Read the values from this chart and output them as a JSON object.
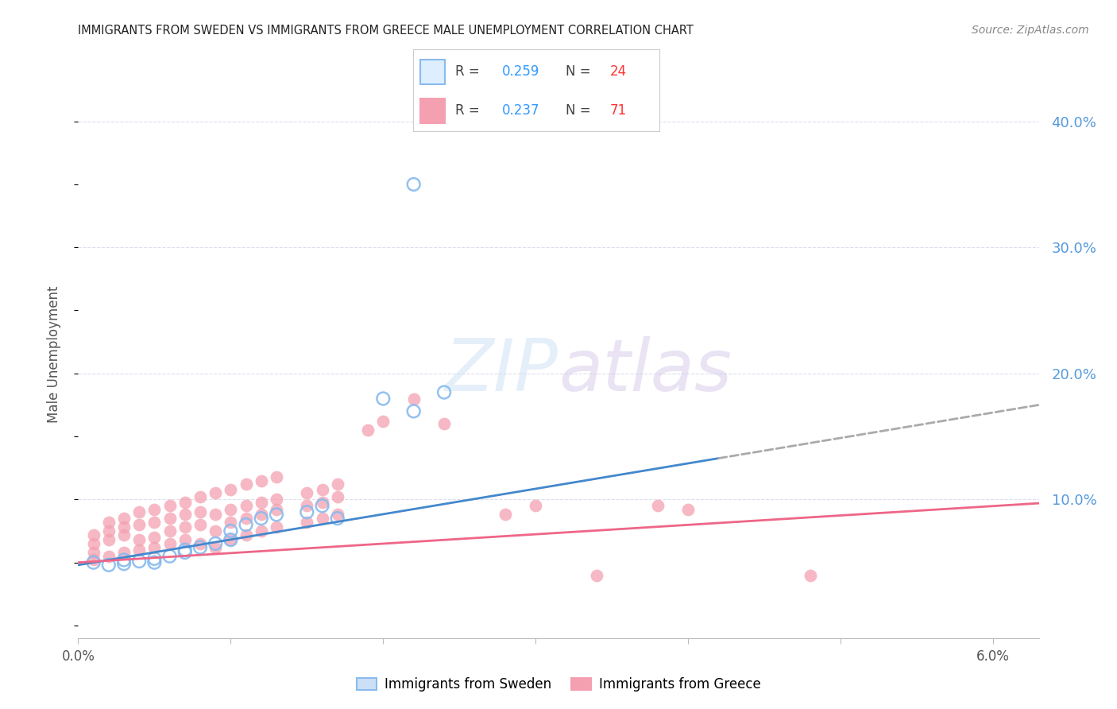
{
  "title": "IMMIGRANTS FROM SWEDEN VS IMMIGRANTS FROM GREECE MALE UNEMPLOYMENT CORRELATION CHART",
  "source": "Source: ZipAtlas.com",
  "ylabel": "Male Unemployment",
  "xlim": [
    0.0,
    0.063
  ],
  "ylim": [
    -0.01,
    0.44
  ],
  "right_yticks": [
    0.1,
    0.2,
    0.3,
    0.4
  ],
  "right_yticklabels": [
    "10.0%",
    "20.0%",
    "30.0%",
    "40.0%"
  ],
  "gridline_y": [
    0.1,
    0.2,
    0.3,
    0.4
  ],
  "background_color": "#ffffff",
  "grid_color": "#ddddee",
  "sweden_color": "#88bbee",
  "greece_color": "#f4a0b0",
  "trend_sweden_solid_color": "#4488cc",
  "trend_sweden_dash_color": "#aaaaaa",
  "trend_greece_color": "#ee6688",
  "legend_R_color_sweden": "#3399ff",
  "legend_N_color_sweden": "#ff4444",
  "legend_R_color_greece": "#3399ff",
  "legend_N_color_greece": "#ff4444",
  "sweden_scatter": [
    [
      0.001,
      0.05
    ],
    [
      0.002,
      0.048
    ],
    [
      0.003,
      0.052
    ],
    [
      0.003,
      0.049
    ],
    [
      0.004,
      0.051
    ],
    [
      0.005,
      0.05
    ],
    [
      0.005,
      0.053
    ],
    [
      0.006,
      0.055
    ],
    [
      0.007,
      0.058
    ],
    [
      0.007,
      0.06
    ],
    [
      0.008,
      0.062
    ],
    [
      0.009,
      0.065
    ],
    [
      0.01,
      0.068
    ],
    [
      0.01,
      0.075
    ],
    [
      0.011,
      0.08
    ],
    [
      0.012,
      0.085
    ],
    [
      0.013,
      0.088
    ],
    [
      0.015,
      0.09
    ],
    [
      0.016,
      0.095
    ],
    [
      0.017,
      0.085
    ],
    [
      0.02,
      0.18
    ],
    [
      0.022,
      0.17
    ],
    [
      0.024,
      0.185
    ],
    [
      0.022,
      0.35
    ]
  ],
  "greece_scatter": [
    [
      0.001,
      0.052
    ],
    [
      0.001,
      0.058
    ],
    [
      0.001,
      0.065
    ],
    [
      0.001,
      0.072
    ],
    [
      0.002,
      0.055
    ],
    [
      0.002,
      0.068
    ],
    [
      0.002,
      0.075
    ],
    [
      0.002,
      0.082
    ],
    [
      0.003,
      0.058
    ],
    [
      0.003,
      0.072
    ],
    [
      0.003,
      0.078
    ],
    [
      0.003,
      0.085
    ],
    [
      0.004,
      0.06
    ],
    [
      0.004,
      0.068
    ],
    [
      0.004,
      0.08
    ],
    [
      0.004,
      0.09
    ],
    [
      0.005,
      0.062
    ],
    [
      0.005,
      0.07
    ],
    [
      0.005,
      0.082
    ],
    [
      0.005,
      0.092
    ],
    [
      0.006,
      0.065
    ],
    [
      0.006,
      0.075
    ],
    [
      0.006,
      0.085
    ],
    [
      0.006,
      0.095
    ],
    [
      0.007,
      0.068
    ],
    [
      0.007,
      0.078
    ],
    [
      0.007,
      0.088
    ],
    [
      0.007,
      0.098
    ],
    [
      0.008,
      0.065
    ],
    [
      0.008,
      0.08
    ],
    [
      0.008,
      0.09
    ],
    [
      0.008,
      0.102
    ],
    [
      0.009,
      0.062
    ],
    [
      0.009,
      0.075
    ],
    [
      0.009,
      0.088
    ],
    [
      0.009,
      0.105
    ],
    [
      0.01,
      0.068
    ],
    [
      0.01,
      0.082
    ],
    [
      0.01,
      0.092
    ],
    [
      0.01,
      0.108
    ],
    [
      0.011,
      0.072
    ],
    [
      0.011,
      0.085
    ],
    [
      0.011,
      0.095
    ],
    [
      0.011,
      0.112
    ],
    [
      0.012,
      0.075
    ],
    [
      0.012,
      0.088
    ],
    [
      0.012,
      0.098
    ],
    [
      0.012,
      0.115
    ],
    [
      0.013,
      0.078
    ],
    [
      0.013,
      0.092
    ],
    [
      0.013,
      0.1
    ],
    [
      0.013,
      0.118
    ],
    [
      0.015,
      0.082
    ],
    [
      0.015,
      0.095
    ],
    [
      0.015,
      0.105
    ],
    [
      0.016,
      0.085
    ],
    [
      0.016,
      0.098
    ],
    [
      0.016,
      0.108
    ],
    [
      0.017,
      0.088
    ],
    [
      0.017,
      0.102
    ],
    [
      0.017,
      0.112
    ],
    [
      0.019,
      0.155
    ],
    [
      0.02,
      0.162
    ],
    [
      0.022,
      0.18
    ],
    [
      0.024,
      0.16
    ],
    [
      0.028,
      0.088
    ],
    [
      0.03,
      0.095
    ],
    [
      0.034,
      0.04
    ],
    [
      0.038,
      0.095
    ],
    [
      0.04,
      0.092
    ],
    [
      0.048,
      0.04
    ]
  ],
  "trend_sw_x0": 0.0,
  "trend_sw_y0": 0.048,
  "trend_sw_x1": 0.063,
  "trend_sw_y1": 0.175,
  "trend_sw_solid_end": 0.042,
  "trend_gr_x0": 0.0,
  "trend_gr_y0": 0.05,
  "trend_gr_x1": 0.063,
  "trend_gr_y1": 0.097
}
